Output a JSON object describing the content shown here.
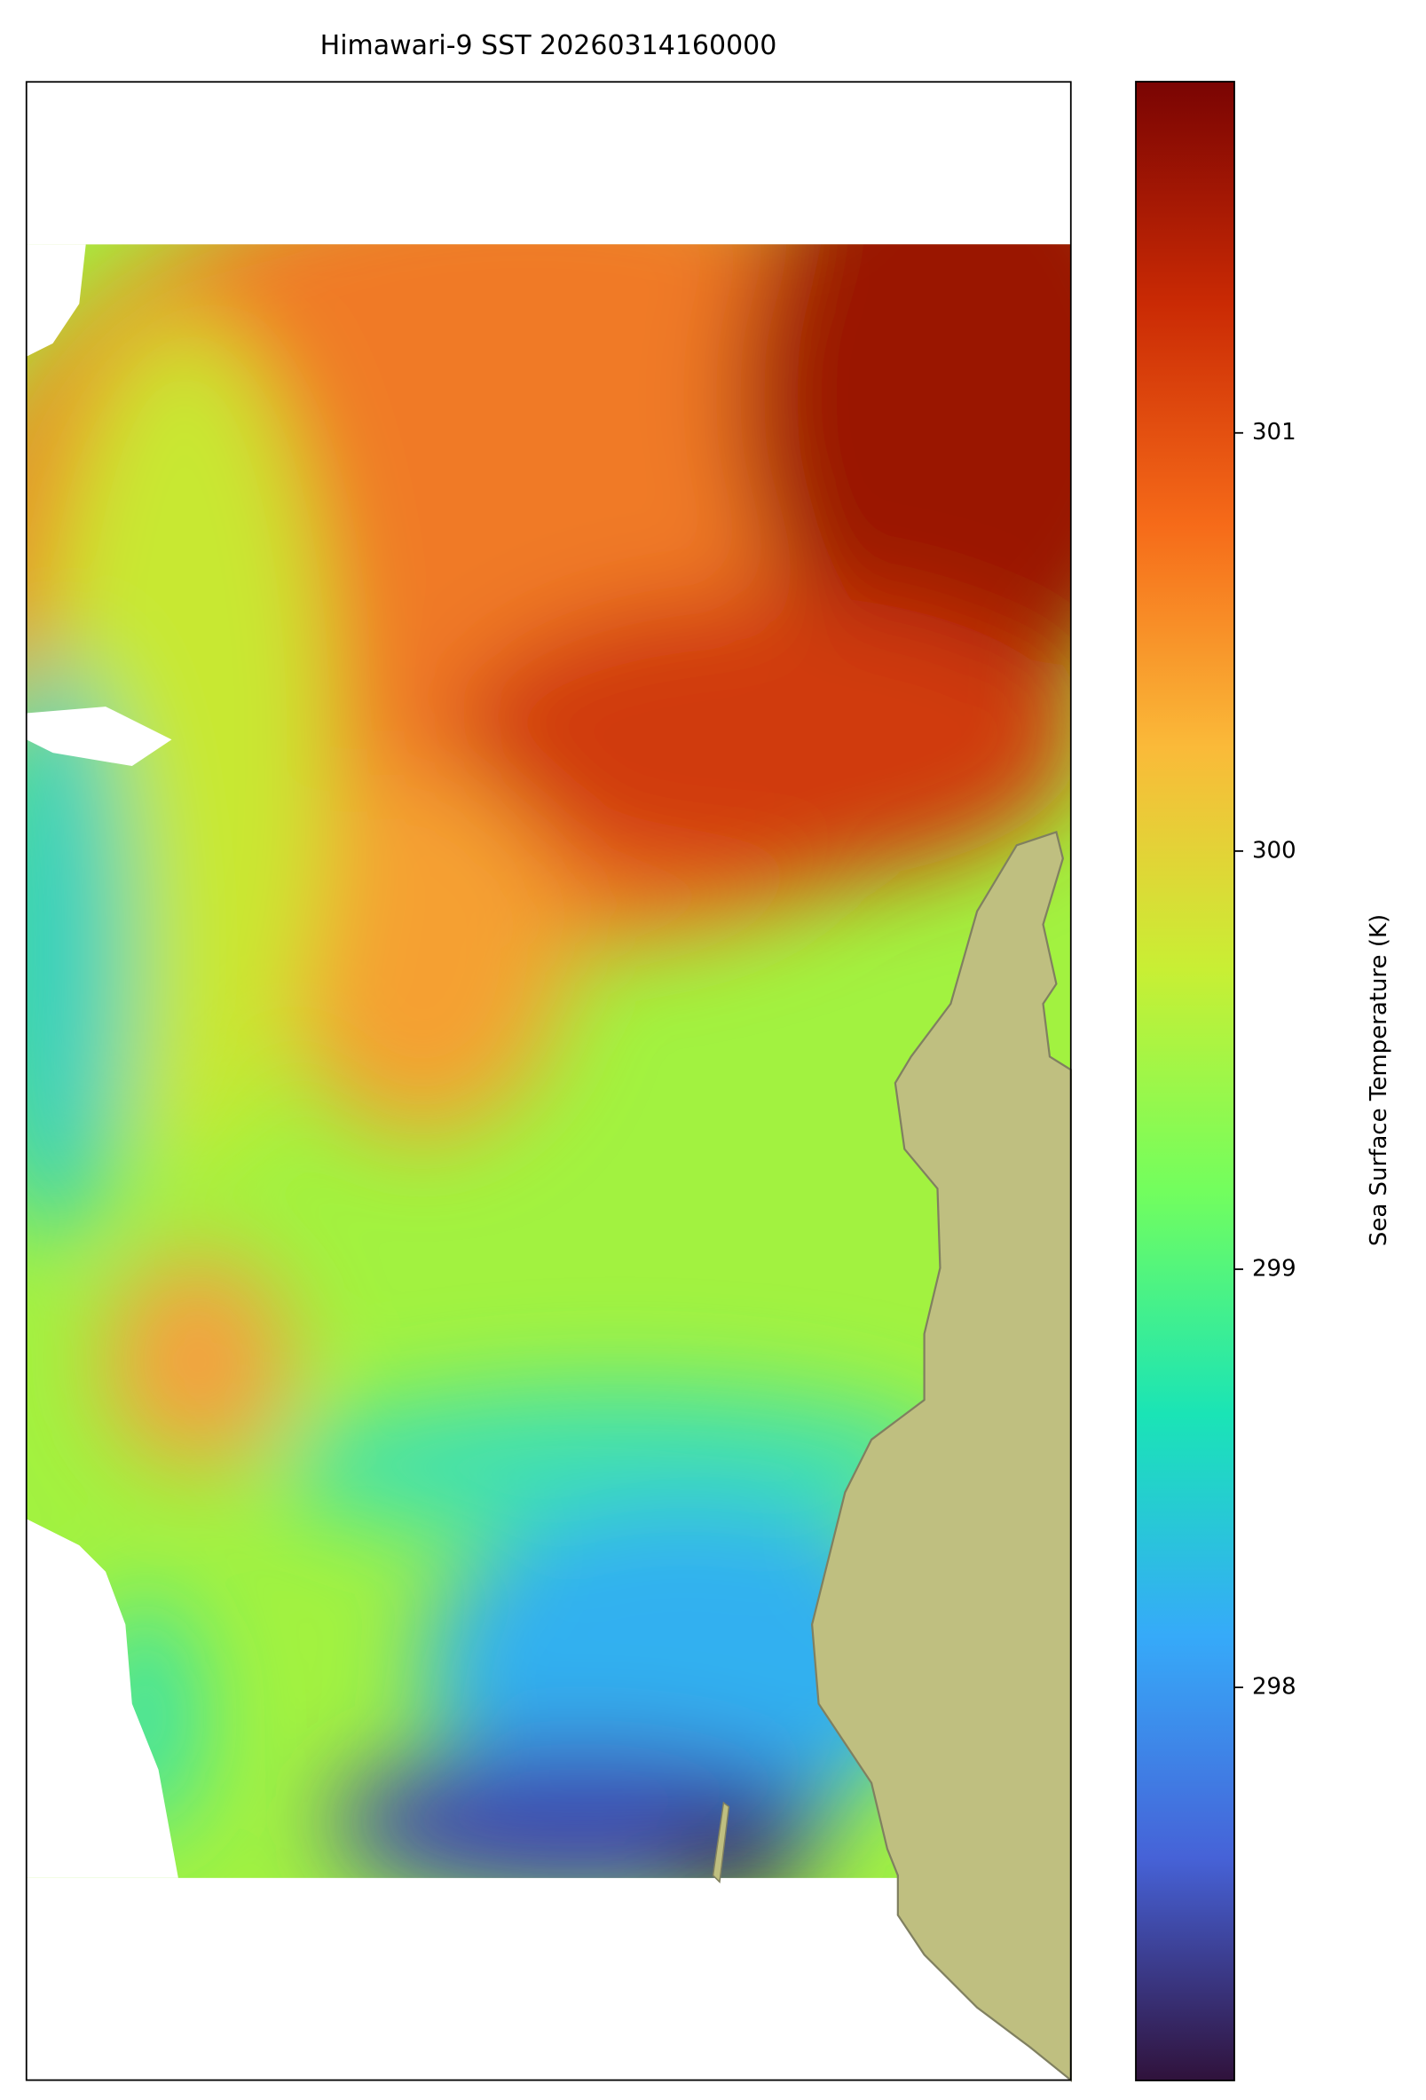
{
  "chart_data": {
    "type": "map",
    "title": "Himawari-9 SST 20260314160000",
    "colorbar_label": "Sea Surface Temperature (K)",
    "clim": [
      297.06,
      301.84
    ],
    "cticks": [
      298,
      299,
      300,
      301
    ],
    "colors": [
      "#30123b",
      "#4662d7",
      "#36aaf9",
      "#1ae4b6",
      "#72fe5e",
      "#c8ef34",
      "#faba39",
      "#f66b19",
      "#ca2a04",
      "#7a0403"
    ]
  }
}
